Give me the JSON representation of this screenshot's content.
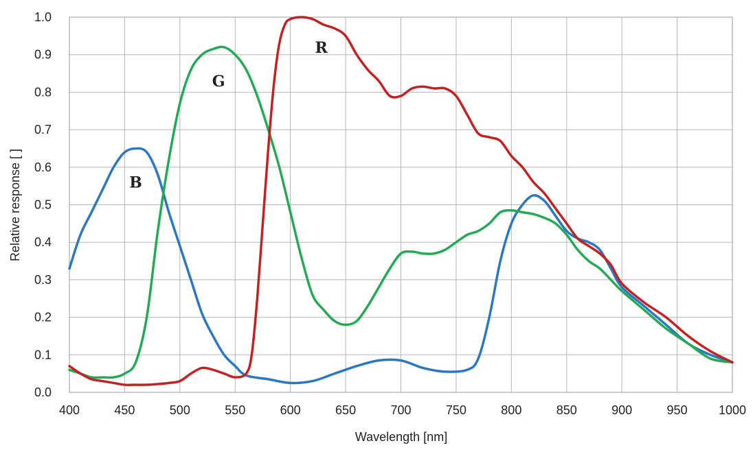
{
  "chart_data": {
    "type": "line",
    "title": "",
    "xlabel": "Wavelength [nm]",
    "ylabel": "Relative response [ ]",
    "xlim": [
      400,
      1000
    ],
    "ylim": [
      0,
      1.0
    ],
    "grid": true,
    "legend": "none",
    "x_ticks": [
      "400",
      "450",
      "500",
      "550",
      "600",
      "650",
      "700",
      "750",
      "800",
      "850",
      "900",
      "950",
      "1000"
    ],
    "y_ticks": [
      "0.0",
      "0.1",
      "0.2",
      "0.3",
      "0.4",
      "0.5",
      "0.6",
      "0.7",
      "0.8",
      "0.9",
      "1.0"
    ],
    "series": [
      {
        "name": "B",
        "color": "#2a78c4",
        "label_at": [
          460,
          0.56
        ],
        "x": [
          400,
          410,
          420,
          430,
          440,
          450,
          460,
          470,
          480,
          490,
          500,
          510,
          520,
          530,
          540,
          550,
          560,
          580,
          600,
          620,
          640,
          660,
          680,
          700,
          720,
          740,
          760,
          770,
          780,
          790,
          800,
          810,
          820,
          830,
          840,
          850,
          860,
          870,
          880,
          890,
          900,
          920,
          940,
          960,
          980,
          1000
        ],
        "y": [
          0.33,
          0.42,
          0.48,
          0.54,
          0.6,
          0.64,
          0.65,
          0.64,
          0.58,
          0.48,
          0.39,
          0.3,
          0.21,
          0.15,
          0.1,
          0.07,
          0.045,
          0.035,
          0.025,
          0.03,
          0.05,
          0.07,
          0.085,
          0.085,
          0.065,
          0.055,
          0.06,
          0.09,
          0.2,
          0.35,
          0.45,
          0.5,
          0.525,
          0.51,
          0.47,
          0.43,
          0.41,
          0.4,
          0.38,
          0.33,
          0.28,
          0.23,
          0.18,
          0.13,
          0.1,
          0.08
        ]
      },
      {
        "name": "G",
        "color": "#22aa55",
        "label_at": [
          535,
          0.83
        ],
        "x": [
          400,
          410,
          420,
          430,
          440,
          450,
          460,
          470,
          480,
          490,
          500,
          510,
          520,
          530,
          540,
          550,
          560,
          570,
          580,
          590,
          600,
          610,
          620,
          630,
          640,
          650,
          660,
          670,
          680,
          690,
          700,
          710,
          720,
          730,
          740,
          750,
          760,
          770,
          780,
          790,
          800,
          810,
          820,
          830,
          840,
          850,
          860,
          870,
          880,
          890,
          900,
          920,
          940,
          960,
          980,
          1000
        ],
        "y": [
          0.06,
          0.05,
          0.04,
          0.04,
          0.04,
          0.05,
          0.08,
          0.2,
          0.43,
          0.62,
          0.77,
          0.86,
          0.9,
          0.915,
          0.92,
          0.9,
          0.86,
          0.79,
          0.7,
          0.6,
          0.48,
          0.36,
          0.26,
          0.22,
          0.19,
          0.18,
          0.19,
          0.23,
          0.28,
          0.33,
          0.37,
          0.375,
          0.37,
          0.37,
          0.38,
          0.4,
          0.42,
          0.43,
          0.45,
          0.48,
          0.485,
          0.48,
          0.475,
          0.465,
          0.45,
          0.42,
          0.38,
          0.35,
          0.33,
          0.3,
          0.27,
          0.22,
          0.17,
          0.13,
          0.09,
          0.08
        ]
      },
      {
        "name": "R",
        "color": "#c42222",
        "label_at": [
          628,
          0.92
        ],
        "x": [
          400,
          410,
          420,
          430,
          440,
          450,
          460,
          470,
          480,
          490,
          500,
          510,
          520,
          530,
          540,
          550,
          560,
          565,
          570,
          575,
          580,
          585,
          590,
          595,
          600,
          610,
          620,
          630,
          640,
          650,
          660,
          670,
          680,
          690,
          700,
          710,
          720,
          730,
          740,
          750,
          760,
          770,
          780,
          790,
          800,
          810,
          820,
          830,
          840,
          850,
          860,
          870,
          880,
          890,
          900,
          920,
          940,
          960,
          980,
          1000
        ],
        "y": [
          0.07,
          0.05,
          0.035,
          0.03,
          0.025,
          0.02,
          0.02,
          0.02,
          0.022,
          0.025,
          0.03,
          0.05,
          0.065,
          0.06,
          0.05,
          0.04,
          0.05,
          0.1,
          0.25,
          0.45,
          0.65,
          0.82,
          0.93,
          0.98,
          0.995,
          1.0,
          0.995,
          0.98,
          0.97,
          0.95,
          0.9,
          0.86,
          0.83,
          0.79,
          0.79,
          0.81,
          0.815,
          0.81,
          0.81,
          0.79,
          0.74,
          0.69,
          0.68,
          0.67,
          0.63,
          0.6,
          0.56,
          0.53,
          0.49,
          0.45,
          0.41,
          0.39,
          0.37,
          0.34,
          0.29,
          0.24,
          0.2,
          0.15,
          0.11,
          0.08
        ]
      }
    ]
  }
}
